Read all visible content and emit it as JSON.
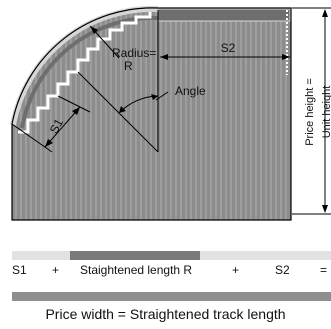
{
  "diagram": {
    "labels": {
      "radius_line1": "Radius=",
      "radius_line2": "R",
      "angle": "Angle",
      "s1": "S1",
      "s2": "S2",
      "price_height": "Price height =",
      "unit_height": "Unit height"
    }
  },
  "legend": {
    "s1": "S1",
    "plus1": "+",
    "straightened": "Staightened length R",
    "plus2": "+",
    "s2": "S2",
    "equals": "="
  },
  "footer": {
    "text": "Price width = Straightened track length"
  },
  "colors": {
    "panel_fill": "#8c8c8c",
    "slat_line": "#bcbcbc",
    "track_light": "#d6d6d6",
    "track_dark": "#6e6e6e",
    "strip_light": "#e2e2e2",
    "strip_mid": "#7a7a7a",
    "strip_full": "#8e8e8e"
  }
}
